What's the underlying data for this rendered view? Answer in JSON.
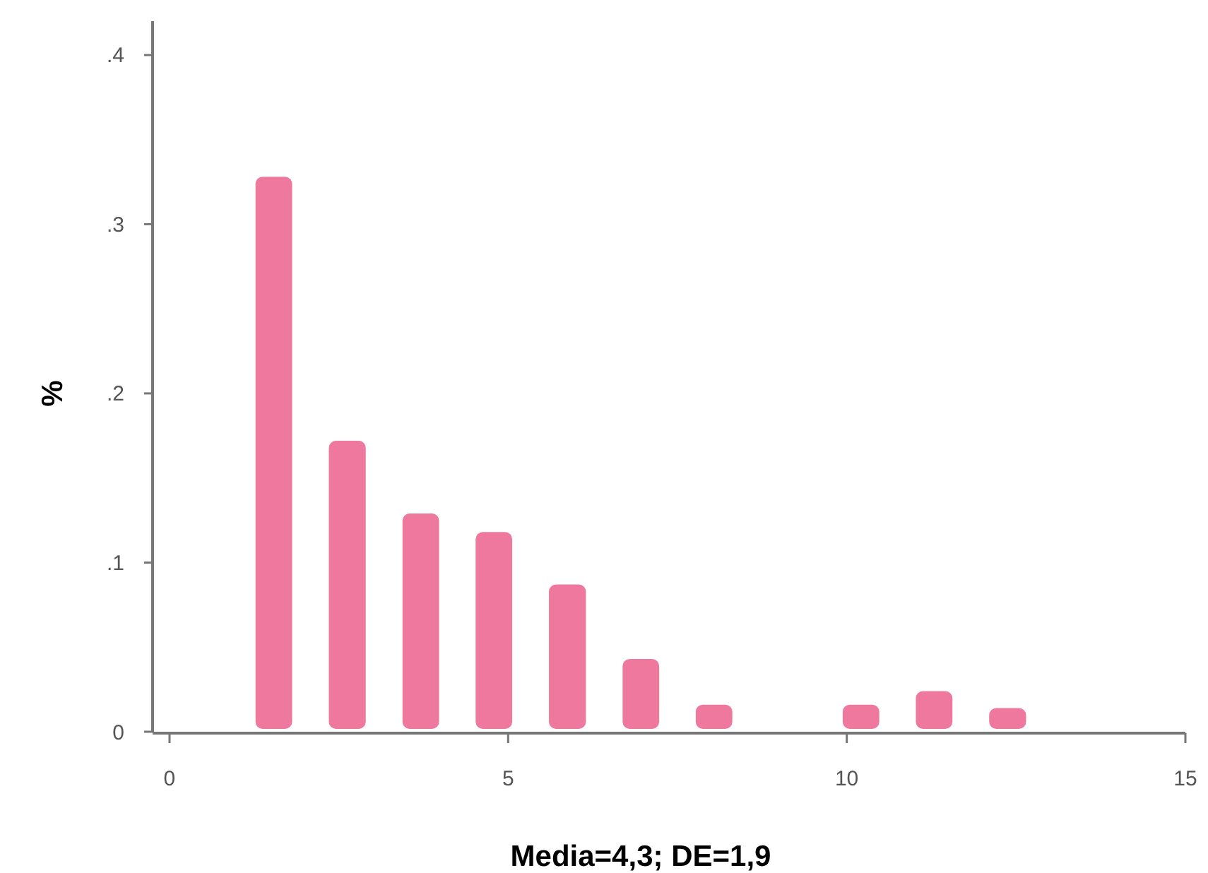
{
  "chart_data": {
    "type": "histogram",
    "xlabel": "Media=4,3; DE=1,9",
    "ylabel": "%",
    "bins": [
      1,
      2.08,
      3.17,
      4.25,
      5.33,
      6.42,
      7.5,
      8.58,
      9.67,
      10.75,
      11.83,
      12.92
    ],
    "values": [
      0.328,
      0.172,
      0.129,
      0.118,
      0.087,
      0.043,
      0.016,
      0,
      0.016,
      0.024,
      0.014
    ],
    "color": "#ee789e",
    "xlim": [
      -0.25,
      15
    ],
    "xticks": [
      0,
      5,
      10,
      15
    ],
    "ylim": [
      0,
      0.42
    ],
    "yticks": [
      0,
      {
        "value": 0.1,
        "label": ".1"
      },
      {
        "value": 0.2,
        "label": ".2"
      },
      {
        "value": 0.3,
        "label": ".3"
      },
      {
        "value": 0.4,
        "label": ".4"
      }
    ],
    "grid": false
  }
}
